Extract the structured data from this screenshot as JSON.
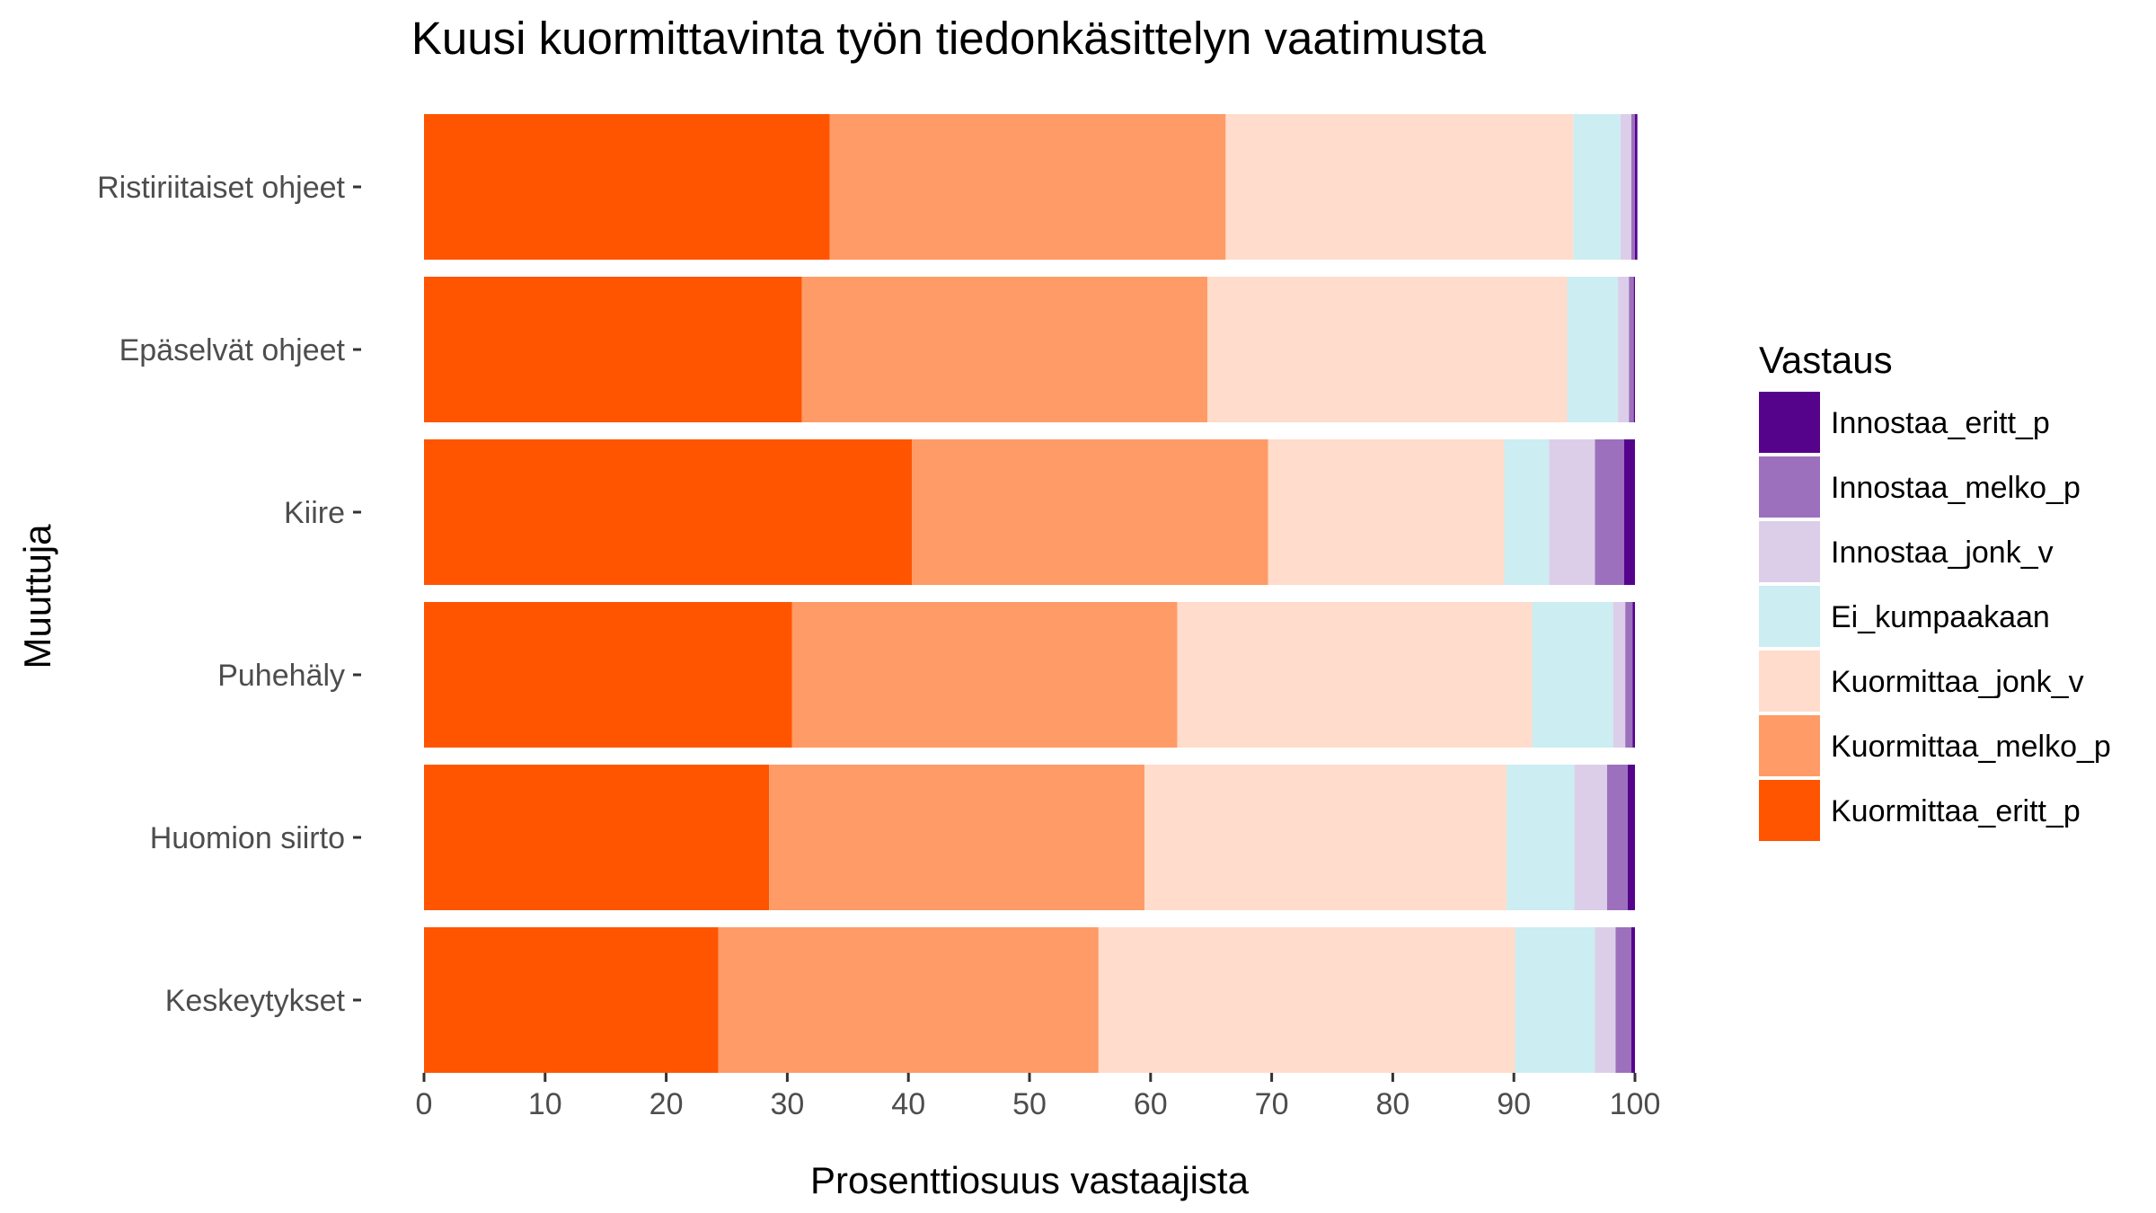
{
  "chart_data": {
    "type": "bar",
    "orientation": "horizontal",
    "stacked": true,
    "title": "Kuusi kuormittavinta työn tiedonkäsittelyn vaatimusta",
    "xlabel": "Prosenttiosuus vastaajista",
    "ylabel": "Muuttuja",
    "xlim": [
      0,
      100
    ],
    "xticks": [
      "0",
      "10",
      "20",
      "30",
      "40",
      "50",
      "60",
      "70",
      "80",
      "90",
      "100"
    ],
    "grid": false,
    "legend_position": "right",
    "legend_title": "Vastaus",
    "categories": [
      "Ristiriitaiset ohjeet",
      "Epäselvät ohjeet",
      "Kiire",
      "Puhehäly",
      "Huomion siirto",
      "Keskeytykset"
    ],
    "series": [
      {
        "name": "Kuormittaa_eritt_p",
        "color": "#FF5500",
        "values": [
          33.5,
          31.2,
          40.3,
          30.4,
          28.5,
          24.3
        ]
      },
      {
        "name": "Kuormittaa_melko_p",
        "color": "#FF9B66",
        "values": [
          32.7,
          33.5,
          29.4,
          31.8,
          31.0,
          31.4
        ]
      },
      {
        "name": "Kuormittaa_jonk_v",
        "color": "#FFDCCB",
        "values": [
          28.7,
          29.7,
          19.5,
          29.3,
          29.9,
          34.4
        ]
      },
      {
        "name": "Ei_kumpaakaan",
        "color": "#CCEDF1",
        "values": [
          3.9,
          4.2,
          3.7,
          6.7,
          5.6,
          6.6
        ]
      },
      {
        "name": "Innostaa_jonk_v",
        "color": "#DCCEE9",
        "values": [
          0.9,
          0.9,
          3.8,
          1.0,
          2.7,
          1.7
        ]
      },
      {
        "name": "Innostaa_melko_p",
        "color": "#9D70BD",
        "values": [
          0.3,
          0.4,
          2.4,
          0.6,
          1.7,
          1.3
        ]
      },
      {
        "name": "Innostaa_eritt_p",
        "color": "#56038C",
        "values": [
          0.2,
          0.1,
          0.9,
          0.2,
          0.6,
          0.3
        ]
      }
    ],
    "legend_order": [
      "Innostaa_eritt_p",
      "Innostaa_melko_p",
      "Innostaa_jonk_v",
      "Ei_kumpaakaan",
      "Kuormittaa_jonk_v",
      "Kuormittaa_melko_p",
      "Kuormittaa_eritt_p"
    ]
  }
}
